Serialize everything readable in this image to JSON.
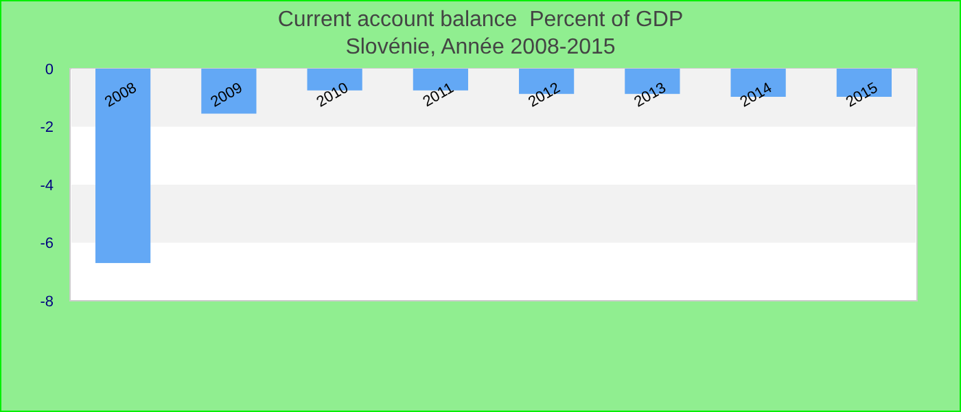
{
  "chart_data": {
    "type": "bar",
    "title": "Current account balance  Percent of GDP",
    "subtitle": "Slovénie, Année 2008-2015",
    "categories": [
      "2008",
      "2009",
      "2010",
      "2011",
      "2012",
      "2013",
      "2014",
      "2015"
    ],
    "values": [
      -6.7,
      -1.55,
      -0.75,
      -0.75,
      -0.87,
      -0.87,
      -0.97,
      -0.97
    ],
    "color": "#63a8f5",
    "ylim": [
      -8,
      0
    ],
    "yticks": [
      -8,
      -6,
      -4,
      -2,
      0
    ]
  }
}
